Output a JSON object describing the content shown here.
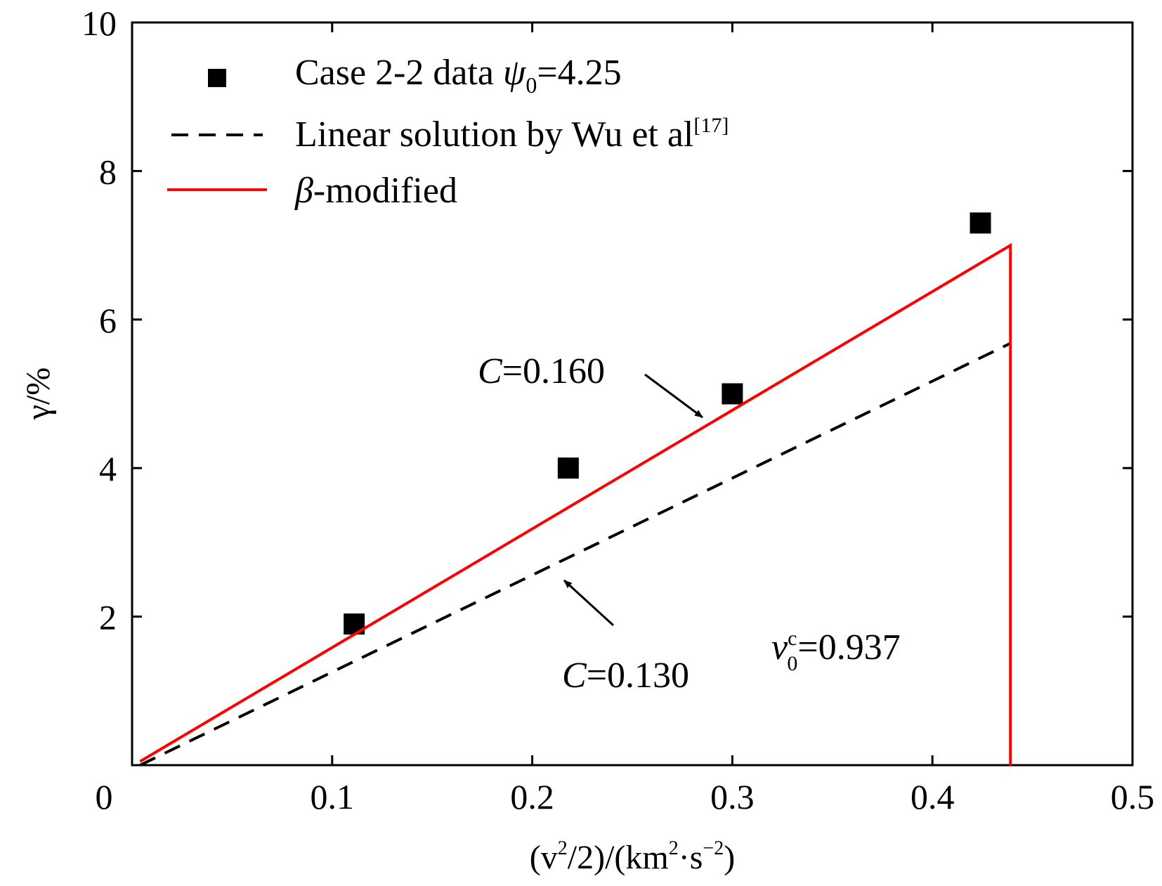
{
  "chart_data": {
    "type": "scatter",
    "xlabel": {
      "main": "(v",
      "sup1": "2",
      "mid": "/2)/(km",
      "sup2": "2",
      "dot": "·s",
      "sup3": "−2",
      "end": ")"
    },
    "ylabel": "γ/%",
    "xlim": [
      0,
      0.5
    ],
    "ylim": [
      0,
      10
    ],
    "x_ticks": [
      "0",
      "0.1",
      "0.2",
      "0.3",
      "0.4",
      "0.5"
    ],
    "y_ticks": [
      "0",
      "2",
      "4",
      "6",
      "8",
      "10"
    ],
    "x_tick_values": [
      0,
      0.1,
      0.2,
      0.3,
      0.4,
      0.5
    ],
    "y_tick_values": [
      0,
      2,
      4,
      6,
      8,
      10
    ],
    "grid": false,
    "legend_position": "top-left",
    "series": [
      {
        "name": "Case 2-2 data ψ0=4.25",
        "kind": "scatter",
        "color": "#000000",
        "x": [
          0.111,
          0.218,
          0.3,
          0.424
        ],
        "y": [
          1.9,
          4.0,
          5.0,
          7.3
        ]
      },
      {
        "name": "Linear solution by Wu et al[17]",
        "kind": "line-dashed",
        "color": "#000000",
        "x": [
          0.004,
          0.439
        ],
        "y": [
          0.0,
          5.68
        ]
      },
      {
        "name": "β-modified",
        "kind": "line",
        "color": "#ff0000",
        "x": [
          0.004,
          0.439,
          0.439
        ],
        "y": [
          0.05,
          7.0,
          0.0
        ]
      }
    ],
    "legend": {
      "scatter_label": {
        "pre": "Case 2-2 data ",
        "sym": "ψ",
        "sub": "0",
        "post": "=4.25"
      },
      "dashed_label": {
        "main": "Linear solution by Wu et al",
        "sup": "[17]"
      },
      "red_label": {
        "sym": "β",
        "post": "-modified"
      }
    },
    "annotations": {
      "c160": {
        "sym": "C",
        "val": "=0.160"
      },
      "c130": {
        "sym": "C",
        "val": "=0.130"
      },
      "v0c": {
        "sym": "v",
        "sup": "c",
        "sub": "0",
        "val": "=0.937"
      }
    }
  }
}
